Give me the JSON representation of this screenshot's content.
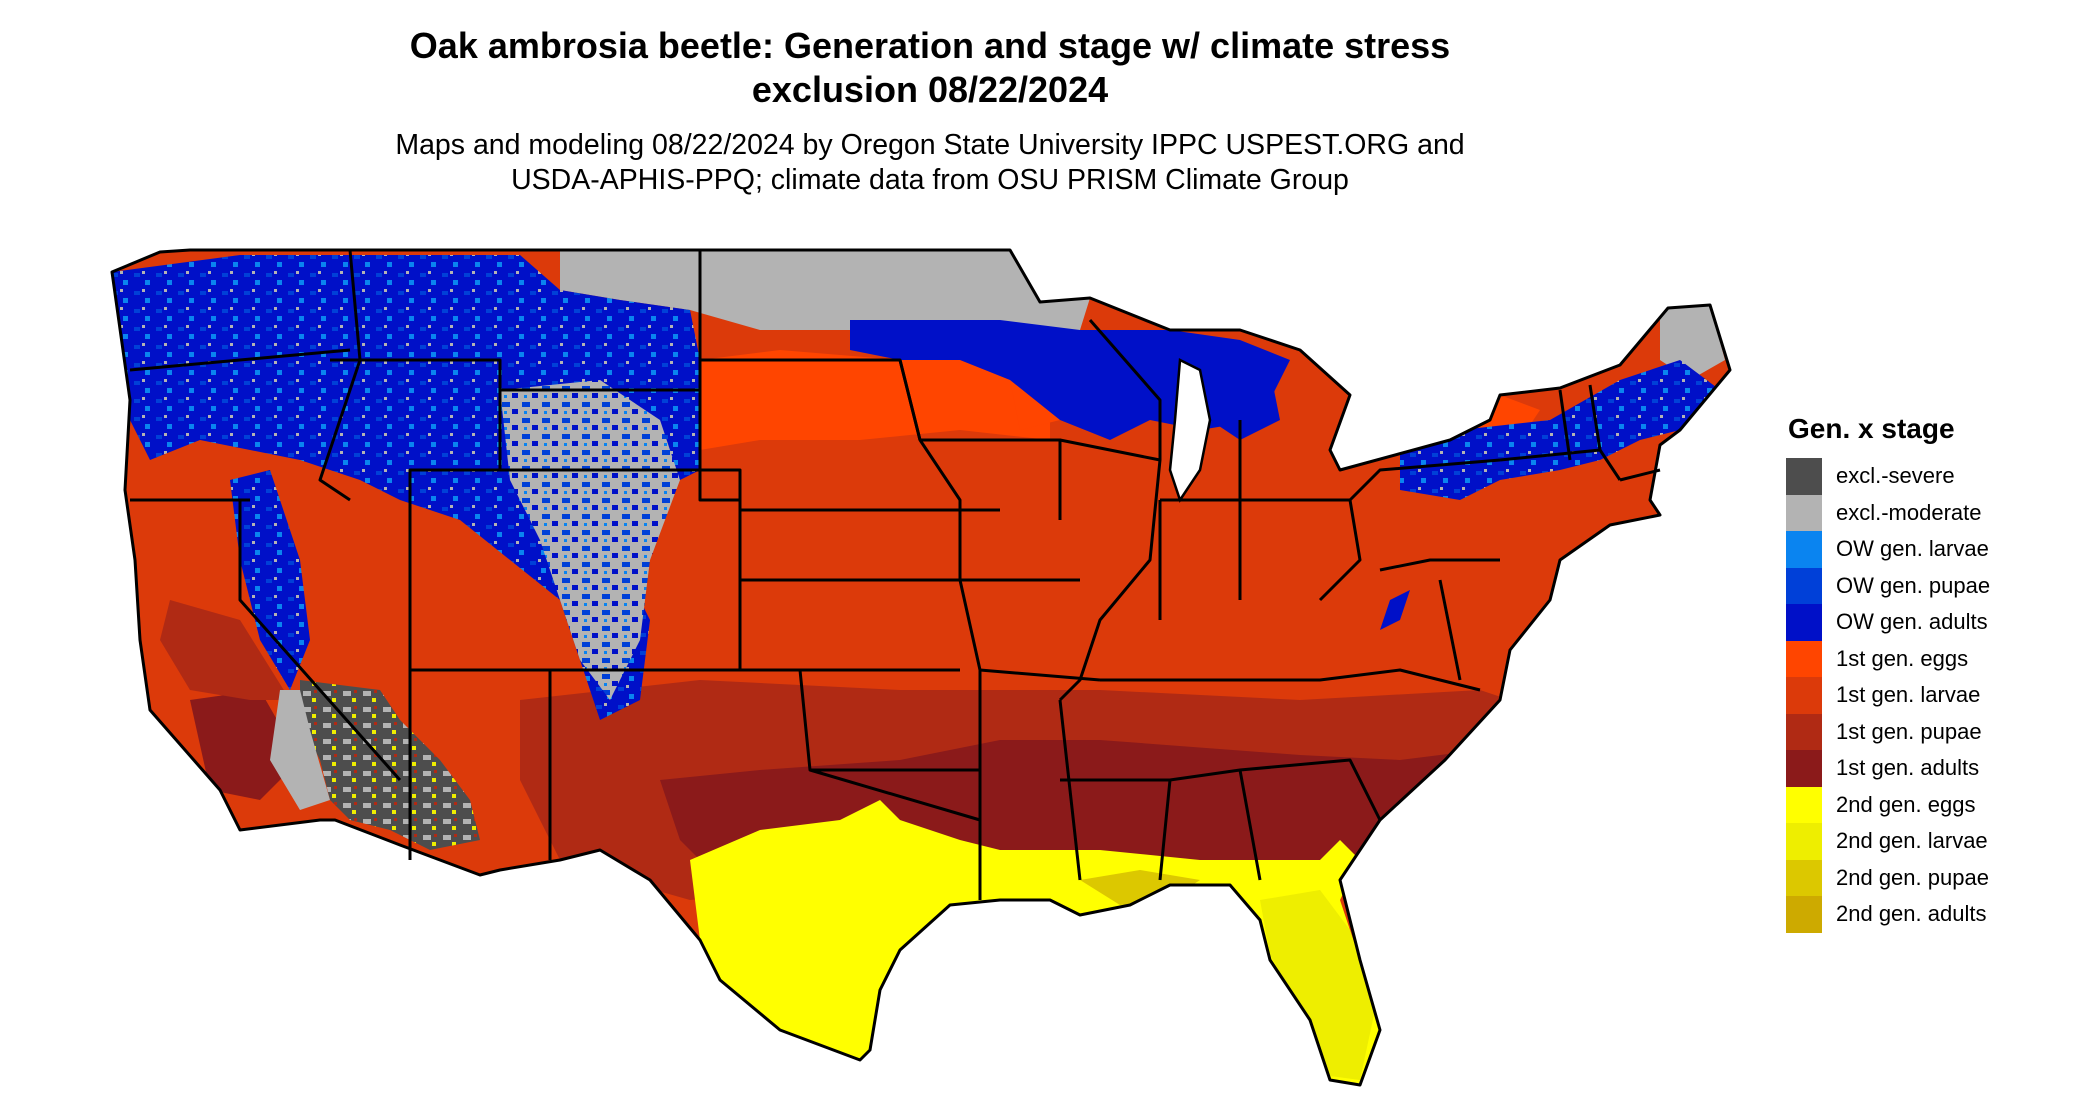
{
  "title": {
    "line1": "Oak ambrosia beetle: Generation and stage w/ climate stress",
    "line2": "exclusion 08/22/2024"
  },
  "subtitle": {
    "line1": "Maps and modeling 08/22/2024 by Oregon State University IPPC USPEST.ORG and",
    "line2": "USDA-APHIS-PPQ; climate data from OSU PRISM Climate Group"
  },
  "legend": {
    "title": "Gen. x stage",
    "items": [
      {
        "label": "excl.-severe",
        "color": "#4d4d4d"
      },
      {
        "label": "excl.-moderate",
        "color": "#b3b3b3"
      },
      {
        "label": "OW gen. larvae",
        "color": "#0a84f0"
      },
      {
        "label": "OW gen. pupae",
        "color": "#0040d8"
      },
      {
        "label": "OW gen. adults",
        "color": "#0010c8"
      },
      {
        "label": "1st gen. eggs",
        "color": "#ff4500"
      },
      {
        "label": "1st gen. larvae",
        "color": "#dc3a0a"
      },
      {
        "label": "1st gen. pupae",
        "color": "#b02a14"
      },
      {
        "label": "1st gen. adults",
        "color": "#8b1a1a"
      },
      {
        "label": "2nd gen. eggs",
        "color": "#ffff00"
      },
      {
        "label": "2nd gen. larvae",
        "color": "#eeee00"
      },
      {
        "label": "2nd gen. pupae",
        "color": "#dcc800"
      },
      {
        "label": "2nd gen. adults",
        "color": "#cdaa00"
      }
    ]
  }
}
